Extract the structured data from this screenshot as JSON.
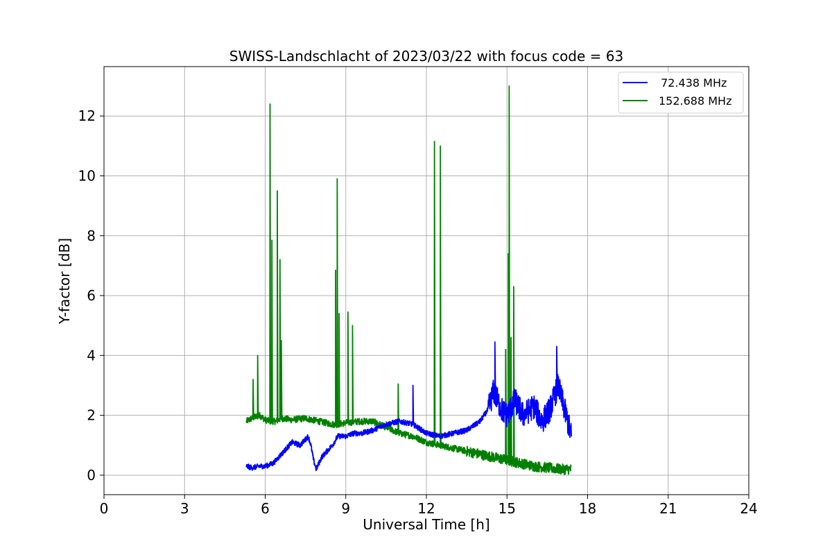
{
  "chart_data": {
    "type": "line",
    "title": "SWISS-Landschlacht of 2023/03/22 with focus code = 63",
    "xlabel": "Universal Time [h]",
    "ylabel": "Y-factor [dB]",
    "xlim": [
      0,
      24
    ],
    "ylim": [
      -0.65,
      13.65
    ],
    "xticks": [
      0,
      3,
      6,
      9,
      12,
      15,
      18,
      21,
      24
    ],
    "yticks": [
      0,
      2,
      4,
      6,
      8,
      10,
      12
    ],
    "grid": true,
    "legend_position": "top-right",
    "series": [
      {
        "name": " 72.438 MHz",
        "color": "#0000ff",
        "x": [
          5.3,
          5.5,
          5.8,
          6.0,
          6.3,
          6.5,
          6.8,
          7.0,
          7.3,
          7.5,
          7.6,
          7.7,
          7.8,
          7.9,
          8.1,
          8.3,
          8.5,
          8.7,
          9.0,
          9.3,
          9.6,
          10.0,
          10.5,
          11.0,
          11.5,
          12.0,
          12.5,
          13.0,
          13.5,
          14.0,
          14.3,
          14.5,
          14.8,
          15.0,
          15.3,
          15.6,
          16.0,
          16.3,
          16.6,
          16.9,
          17.2,
          17.4
        ],
        "y": [
          0.3,
          0.25,
          0.3,
          0.3,
          0.4,
          0.6,
          0.9,
          1.1,
          1.0,
          1.2,
          1.3,
          1.0,
          0.5,
          0.2,
          0.6,
          0.8,
          1.0,
          1.3,
          1.3,
          1.4,
          1.4,
          1.5,
          1.7,
          1.8,
          1.7,
          1.4,
          1.3,
          1.4,
          1.5,
          1.8,
          2.2,
          2.8,
          2.2,
          2.0,
          2.5,
          2.0,
          2.3,
          1.8,
          2.2,
          3.0,
          2.0,
          1.3
        ]
      },
      {
        "name": "152.688 MHz",
        "color": "#008000",
        "x": [
          5.3,
          5.5,
          5.8,
          6.0,
          6.2,
          6.4,
          6.6,
          7.0,
          7.5,
          8.0,
          8.5,
          8.7,
          9.0,
          9.5,
          10.0,
          10.5,
          11.0,
          11.5,
          12.0,
          12.5,
          13.0,
          13.5,
          14.0,
          14.5,
          15.0,
          15.5,
          16.0,
          16.5,
          17.0,
          17.4
        ],
        "y": [
          1.8,
          1.9,
          2.0,
          1.85,
          1.8,
          1.8,
          1.9,
          1.85,
          1.9,
          1.8,
          1.7,
          1.7,
          1.75,
          1.8,
          1.8,
          1.6,
          1.4,
          1.3,
          1.1,
          1.0,
          0.9,
          0.8,
          0.7,
          0.6,
          0.5,
          0.4,
          0.3,
          0.25,
          0.2,
          0.2
        ]
      }
    ],
    "spikes": [
      {
        "series": 1,
        "x": 5.55,
        "y": 3.2
      },
      {
        "series": 1,
        "x": 5.72,
        "y": 4.0
      },
      {
        "series": 1,
        "x": 6.18,
        "y": 12.4
      },
      {
        "series": 1,
        "x": 6.25,
        "y": 7.85
      },
      {
        "series": 1,
        "x": 6.45,
        "y": 9.5
      },
      {
        "series": 1,
        "x": 6.55,
        "y": 7.2
      },
      {
        "series": 1,
        "x": 6.6,
        "y": 4.5
      },
      {
        "series": 1,
        "x": 8.62,
        "y": 6.85
      },
      {
        "series": 1,
        "x": 8.68,
        "y": 9.9
      },
      {
        "series": 1,
        "x": 8.75,
        "y": 5.4
      },
      {
        "series": 1,
        "x": 9.08,
        "y": 5.45
      },
      {
        "series": 1,
        "x": 9.25,
        "y": 5.0
      },
      {
        "series": 1,
        "x": 10.95,
        "y": 3.05
      },
      {
        "series": 1,
        "x": 12.3,
        "y": 11.15
      },
      {
        "series": 1,
        "x": 12.52,
        "y": 11.0
      },
      {
        "series": 1,
        "x": 14.95,
        "y": 4.2
      },
      {
        "series": 1,
        "x": 15.05,
        "y": 7.4
      },
      {
        "series": 1,
        "x": 15.08,
        "y": 13.0
      },
      {
        "series": 1,
        "x": 15.15,
        "y": 4.6
      },
      {
        "series": 1,
        "x": 15.25,
        "y": 6.3
      },
      {
        "series": 0,
        "x": 11.5,
        "y": 3.0
      },
      {
        "series": 0,
        "x": 14.55,
        "y": 4.45
      },
      {
        "series": 0,
        "x": 16.85,
        "y": 4.3
      }
    ]
  }
}
